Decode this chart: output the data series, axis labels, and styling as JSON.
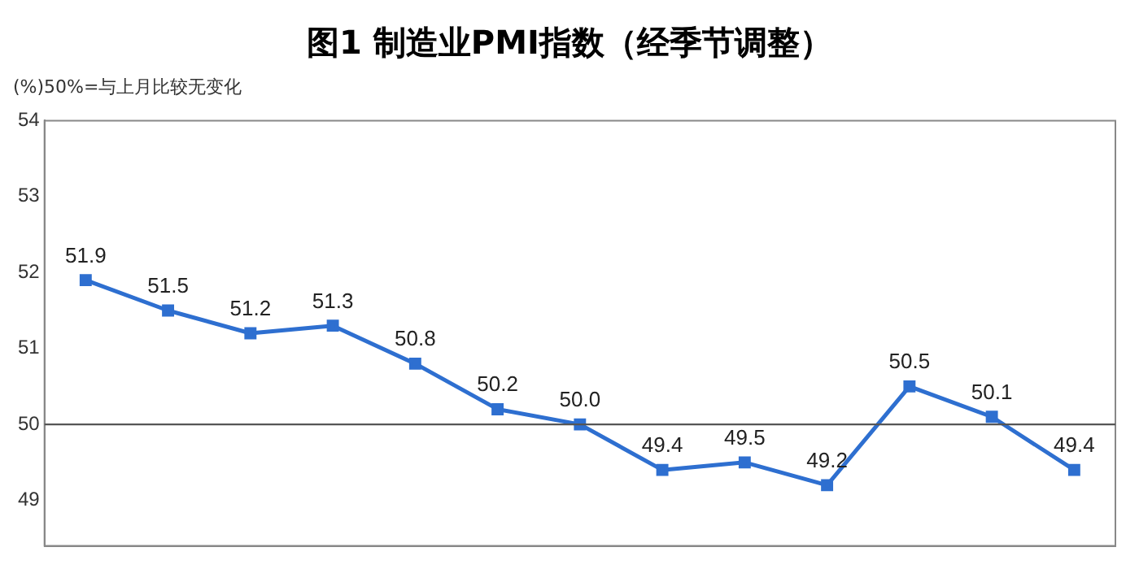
{
  "chart_data": {
    "type": "line",
    "title": "图1  制造业PMI指数（经季节调整）",
    "ylabel": "(%)",
    "annotations": [
      "50%=与上月比较无变化"
    ],
    "categories": [
      null,
      null,
      null,
      null,
      null,
      null,
      null,
      null,
      null,
      null,
      null,
      null,
      null
    ],
    "series": [
      {
        "color": "#2e6fd0",
        "values": [
          51.9,
          51.5,
          51.2,
          51.3,
          50.8,
          50.2,
          50.0,
          49.4,
          49.5,
          49.2,
          50.5,
          50.1,
          49.4
        ],
        "value_labels": [
          "51.9",
          "51.5",
          "51.2",
          "51.3",
          "50.8",
          "50.2",
          "50.0",
          "49.4",
          "49.5",
          "49.2",
          "50.5",
          "50.1",
          "49.4"
        ]
      }
    ],
    "ylim": [
      48.4,
      54
    ],
    "yticks": [
      49,
      50,
      51,
      52,
      53,
      54
    ],
    "ref_lines": [
      {
        "axis": "y",
        "value": 50,
        "color": "#555555"
      }
    ],
    "marker": "square",
    "line_style": "solid",
    "grid": false,
    "legend": false,
    "tick_labels": "y"
  }
}
